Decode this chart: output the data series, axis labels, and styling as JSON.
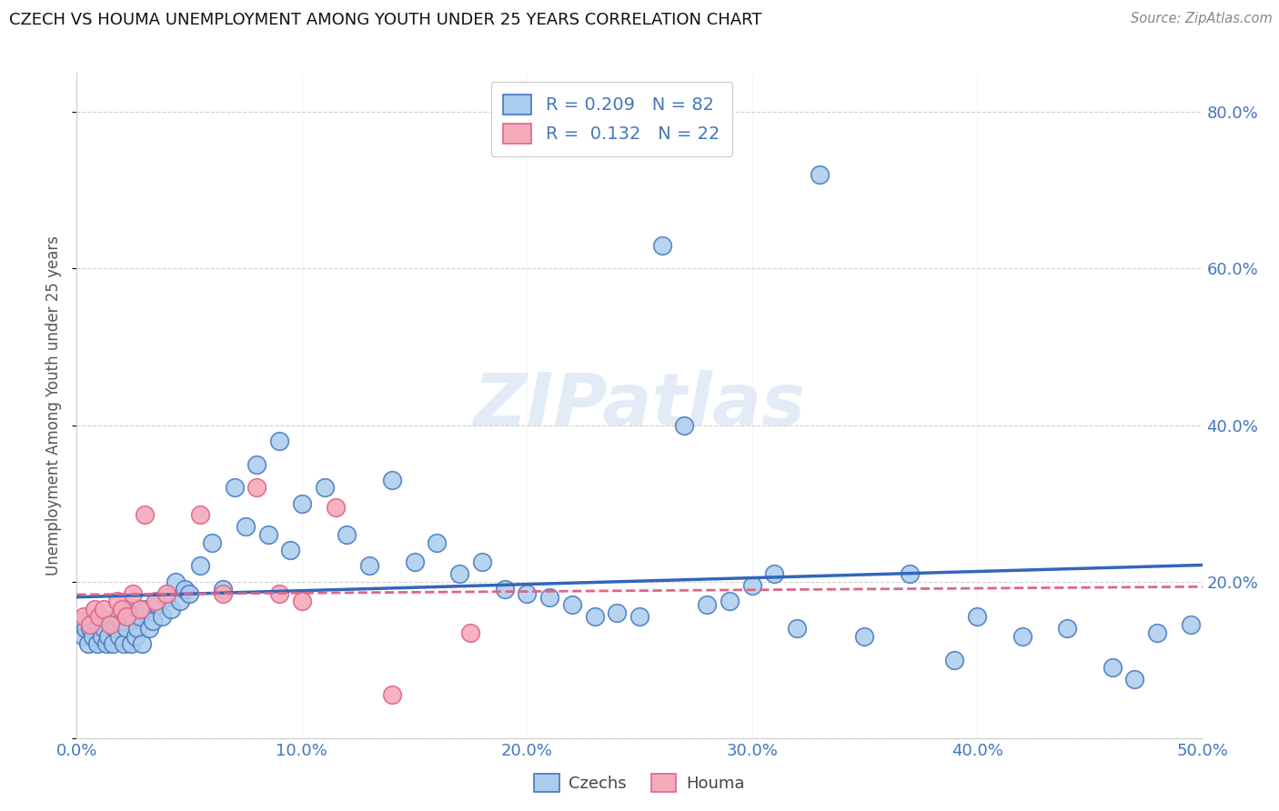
{
  "title": "CZECH VS HOUMA UNEMPLOYMENT AMONG YOUTH UNDER 25 YEARS CORRELATION CHART",
  "source": "Source: ZipAtlas.com",
  "ylabel": "Unemployment Among Youth under 25 years",
  "xlim": [
    0.0,
    0.5
  ],
  "ylim": [
    0.0,
    0.85
  ],
  "xticks": [
    0.0,
    0.1,
    0.2,
    0.3,
    0.4,
    0.5
  ],
  "xtick_labels": [
    "0.0%",
    "10.0%",
    "20.0%",
    "30.0%",
    "40.0%",
    "50.0%"
  ],
  "yticks": [
    0.0,
    0.2,
    0.4,
    0.6,
    0.8
  ],
  "ytick_labels": [
    "",
    "20.0%",
    "40.0%",
    "60.0%",
    "80.0%"
  ],
  "czech_color": "#aaccee",
  "houma_color": "#f5aabb",
  "czech_edge_color": "#4477bb",
  "houma_edge_color": "#dd6688",
  "czech_line_color": "#3366bb",
  "houma_line_color": "#dd6688",
  "legend_label_czech": "Czechs",
  "legend_label_houma": "Houma",
  "czech_R": 0.209,
  "czech_N": 82,
  "houma_R": 0.132,
  "houma_N": 22,
  "watermark_text": "ZIPatlas",
  "czech_x": [
    0.002,
    0.003,
    0.004,
    0.005,
    0.006,
    0.007,
    0.008,
    0.009,
    0.01,
    0.011,
    0.012,
    0.013,
    0.014,
    0.015,
    0.016,
    0.017,
    0.018,
    0.019,
    0.02,
    0.021,
    0.022,
    0.023,
    0.024,
    0.025,
    0.026,
    0.027,
    0.028,
    0.029,
    0.03,
    0.032,
    0.034,
    0.036,
    0.038,
    0.04,
    0.042,
    0.044,
    0.046,
    0.048,
    0.05,
    0.055,
    0.06,
    0.065,
    0.07,
    0.075,
    0.08,
    0.085,
    0.09,
    0.095,
    0.1,
    0.11,
    0.12,
    0.13,
    0.14,
    0.15,
    0.16,
    0.17,
    0.18,
    0.19,
    0.2,
    0.21,
    0.22,
    0.23,
    0.24,
    0.25,
    0.26,
    0.27,
    0.28,
    0.29,
    0.3,
    0.31,
    0.32,
    0.33,
    0.35,
    0.37,
    0.39,
    0.4,
    0.42,
    0.44,
    0.46,
    0.47,
    0.48,
    0.495
  ],
  "czech_y": [
    0.15,
    0.13,
    0.14,
    0.12,
    0.14,
    0.13,
    0.15,
    0.12,
    0.145,
    0.13,
    0.14,
    0.12,
    0.13,
    0.15,
    0.12,
    0.14,
    0.155,
    0.13,
    0.15,
    0.12,
    0.14,
    0.16,
    0.12,
    0.155,
    0.13,
    0.14,
    0.155,
    0.12,
    0.165,
    0.14,
    0.15,
    0.17,
    0.155,
    0.18,
    0.165,
    0.2,
    0.175,
    0.19,
    0.185,
    0.22,
    0.25,
    0.19,
    0.32,
    0.27,
    0.35,
    0.26,
    0.38,
    0.24,
    0.3,
    0.32,
    0.26,
    0.22,
    0.33,
    0.225,
    0.25,
    0.21,
    0.225,
    0.19,
    0.185,
    0.18,
    0.17,
    0.155,
    0.16,
    0.155,
    0.63,
    0.4,
    0.17,
    0.175,
    0.195,
    0.21,
    0.14,
    0.72,
    0.13,
    0.21,
    0.1,
    0.155,
    0.13,
    0.14,
    0.09,
    0.075,
    0.135,
    0.145
  ],
  "houma_x": [
    0.003,
    0.006,
    0.008,
    0.01,
    0.012,
    0.015,
    0.018,
    0.02,
    0.022,
    0.025,
    0.028,
    0.03,
    0.035,
    0.04,
    0.055,
    0.065,
    0.08,
    0.09,
    0.1,
    0.115,
    0.14,
    0.175
  ],
  "houma_y": [
    0.155,
    0.145,
    0.165,
    0.155,
    0.165,
    0.145,
    0.175,
    0.165,
    0.155,
    0.185,
    0.165,
    0.285,
    0.175,
    0.185,
    0.285,
    0.185,
    0.32,
    0.185,
    0.175,
    0.295,
    0.055,
    0.135
  ]
}
